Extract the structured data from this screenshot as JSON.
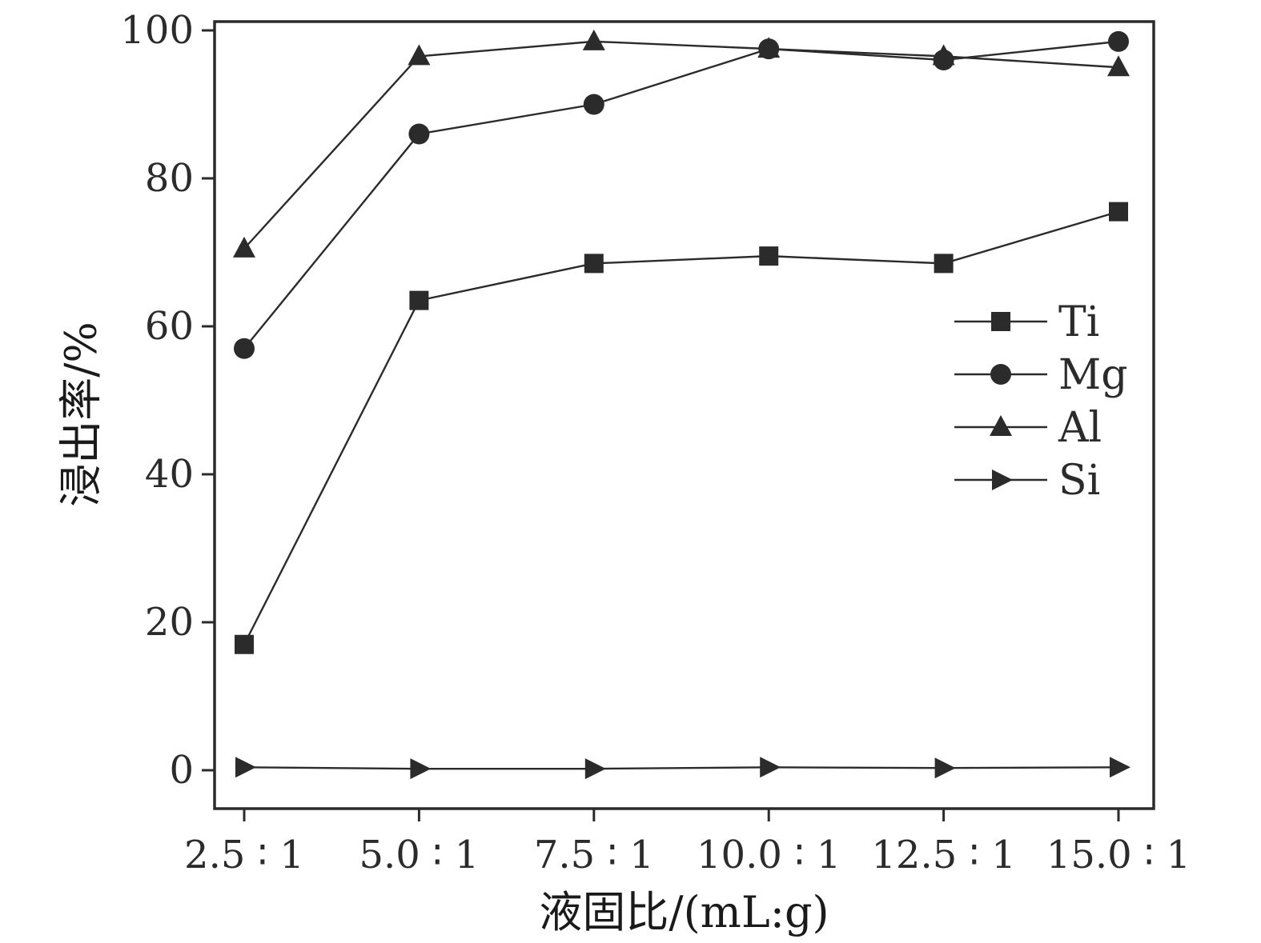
{
  "chart_data": {
    "type": "line",
    "title": "",
    "xlabel": "液固比/(mL:g)",
    "ylabel": "浸出率/%",
    "categories": [
      "2.5 ∶ 1",
      "5.0 ∶ 1",
      "7.5 ∶ 1",
      "10.0 ∶ 1",
      "12.5 ∶ 1",
      "15.0 ∶ 1"
    ],
    "x_axis_note": "liquid-to-solid ratio, mL:g",
    "ylim": [
      0,
      100
    ],
    "yticks": [
      0,
      20,
      40,
      60,
      80,
      100
    ],
    "grid": false,
    "legend_position": "middle-right",
    "ink_color": "#2b2b2b",
    "series": [
      {
        "name": "Ti",
        "marker": "square",
        "values": [
          17,
          63.5,
          68.5,
          69.5,
          68.5,
          75.5
        ]
      },
      {
        "name": "Mg",
        "marker": "circle",
        "values": [
          57,
          86,
          90,
          97.5,
          96,
          98.5
        ]
      },
      {
        "name": "Al",
        "marker": "triangle-up",
        "values": [
          70.5,
          96.5,
          98.5,
          97.5,
          96.5,
          95
        ]
      },
      {
        "name": "Si",
        "marker": "triangle-right",
        "values": [
          0.4,
          0.2,
          0.2,
          0.4,
          0.3,
          0.4
        ]
      }
    ]
  }
}
